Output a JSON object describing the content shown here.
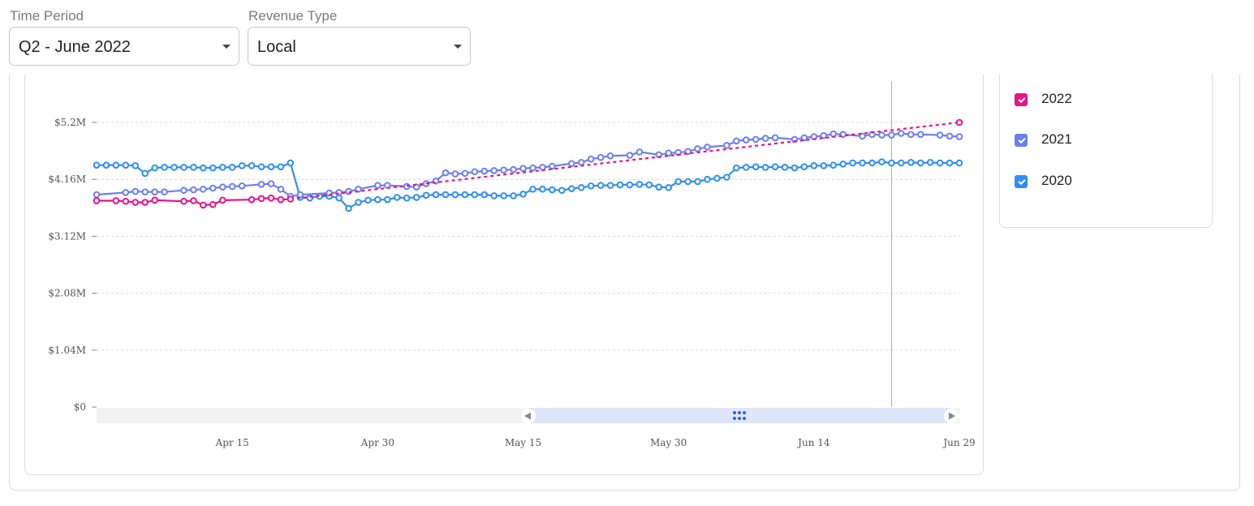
{
  "filters": {
    "time_period": {
      "label": "Time Period",
      "value": "Q2 - June 2022"
    },
    "revenue_type": {
      "label": "Revenue Type",
      "value": "Local"
    }
  },
  "legend": {
    "items": [
      {
        "label": "2022",
        "color": "#e3148c",
        "checked": true
      },
      {
        "label": "2021",
        "color": "#6b7ff0",
        "checked": true
      },
      {
        "label": "2020",
        "color": "#2f8ff0",
        "checked": true
      }
    ]
  },
  "chart_data": {
    "type": "line",
    "title": "",
    "xlabel": "",
    "ylabel": "",
    "ylim": [
      0,
      5200000
    ],
    "y_ticks": [
      0,
      1040000,
      2080000,
      3120000,
      4160000,
      5200000
    ],
    "y_tick_labels": [
      "$0",
      "$1.04M",
      "$2.08M",
      "$3.12M",
      "$4.16M",
      "$5.2M"
    ],
    "x_domain": [
      "2022-04-01",
      "2022-06-29"
    ],
    "x_ticks": [
      "2022-04-15",
      "2022-04-30",
      "2022-05-15",
      "2022-05-30",
      "2022-06-14",
      "2022-06-29"
    ],
    "x_tick_labels": [
      "Apr 15",
      "Apr 30",
      "May 15",
      "May 30",
      "Jun 14",
      "Jun 29"
    ],
    "grid": true,
    "crosshair_date": "2022-06-22",
    "series": [
      {
        "name": "2022",
        "color": "#e3148c",
        "x": [
          "2022-04-01",
          "2022-04-03",
          "2022-04-04",
          "2022-04-05",
          "2022-04-06",
          "2022-04-07",
          "2022-04-10",
          "2022-04-11",
          "2022-04-12",
          "2022-04-13",
          "2022-04-14",
          "2022-04-17",
          "2022-04-18",
          "2022-04-19",
          "2022-04-20",
          "2022-04-21"
        ],
        "values": [
          3770000,
          3770000,
          3760000,
          3740000,
          3740000,
          3780000,
          3760000,
          3770000,
          3690000,
          3700000,
          3780000,
          3790000,
          3810000,
          3820000,
          3790000,
          3800000
        ],
        "trend": {
          "x": [
            "2022-04-21",
            "2022-06-29"
          ],
          "values": [
            3800000,
            5200000
          ]
        }
      },
      {
        "name": "2021",
        "color": "#6b7ff0",
        "x": [
          "2022-04-01",
          "2022-04-04",
          "2022-04-05",
          "2022-04-06",
          "2022-04-07",
          "2022-04-08",
          "2022-04-10",
          "2022-04-11",
          "2022-04-12",
          "2022-04-13",
          "2022-04-14",
          "2022-04-15",
          "2022-04-16",
          "2022-04-18",
          "2022-04-19",
          "2022-04-20",
          "2022-04-21",
          "2022-04-22",
          "2022-04-25",
          "2022-04-26",
          "2022-04-27",
          "2022-04-28",
          "2022-04-30",
          "2022-05-01",
          "2022-05-03",
          "2022-05-04",
          "2022-05-05",
          "2022-05-06",
          "2022-05-07",
          "2022-05-08",
          "2022-05-09",
          "2022-05-10",
          "2022-05-11",
          "2022-05-12",
          "2022-05-13",
          "2022-05-14",
          "2022-05-15",
          "2022-05-16",
          "2022-05-17",
          "2022-05-18",
          "2022-05-20",
          "2022-05-21",
          "2022-05-22",
          "2022-05-23",
          "2022-05-24",
          "2022-05-26",
          "2022-05-27",
          "2022-05-29",
          "2022-05-30",
          "2022-05-31",
          "2022-06-01",
          "2022-06-02",
          "2022-06-03",
          "2022-06-05",
          "2022-06-06",
          "2022-06-07",
          "2022-06-08",
          "2022-06-09",
          "2022-06-10",
          "2022-06-12",
          "2022-06-13",
          "2022-06-14",
          "2022-06-15",
          "2022-06-16",
          "2022-06-17",
          "2022-06-19",
          "2022-06-20",
          "2022-06-21",
          "2022-06-22",
          "2022-06-23",
          "2022-06-24",
          "2022-06-25",
          "2022-06-27",
          "2022-06-28",
          "2022-06-29"
        ],
        "values": [
          3880000,
          3920000,
          3940000,
          3930000,
          3930000,
          3930000,
          3960000,
          3970000,
          3980000,
          4000000,
          4020000,
          4030000,
          4040000,
          4070000,
          4080000,
          3980000,
          3850000,
          3880000,
          3910000,
          3920000,
          3940000,
          3980000,
          4050000,
          4050000,
          4030000,
          4020000,
          4080000,
          4130000,
          4280000,
          4260000,
          4270000,
          4300000,
          4310000,
          4320000,
          4330000,
          4340000,
          4360000,
          4370000,
          4380000,
          4400000,
          4450000,
          4470000,
          4530000,
          4560000,
          4590000,
          4600000,
          4660000,
          4610000,
          4640000,
          4650000,
          4670000,
          4720000,
          4750000,
          4780000,
          4860000,
          4880000,
          4890000,
          4910000,
          4920000,
          4890000,
          4920000,
          4940000,
          4960000,
          4990000,
          4980000,
          4950000,
          4980000,
          4970000,
          4970000,
          5000000,
          4980000,
          4980000,
          4970000,
          4950000,
          4940000
        ]
      },
      {
        "name": "2020",
        "color": "#2f8ff0",
        "x": [
          "2022-04-01",
          "2022-04-02",
          "2022-04-03",
          "2022-04-04",
          "2022-04-05",
          "2022-04-06",
          "2022-04-07",
          "2022-04-08",
          "2022-04-09",
          "2022-04-10",
          "2022-04-11",
          "2022-04-12",
          "2022-04-13",
          "2022-04-14",
          "2022-04-15",
          "2022-04-16",
          "2022-04-17",
          "2022-04-18",
          "2022-04-19",
          "2022-04-20",
          "2022-04-21",
          "2022-04-22",
          "2022-04-23",
          "2022-04-24",
          "2022-04-25",
          "2022-04-26",
          "2022-04-27",
          "2022-04-28",
          "2022-04-29",
          "2022-04-30",
          "2022-05-01",
          "2022-05-02",
          "2022-05-03",
          "2022-05-04",
          "2022-05-05",
          "2022-05-06",
          "2022-05-07",
          "2022-05-08",
          "2022-05-09",
          "2022-05-10",
          "2022-05-11",
          "2022-05-12",
          "2022-05-13",
          "2022-05-14",
          "2022-05-15",
          "2022-05-16",
          "2022-05-17",
          "2022-05-18",
          "2022-05-19",
          "2022-05-20",
          "2022-05-21",
          "2022-05-22",
          "2022-05-23",
          "2022-05-24",
          "2022-05-25",
          "2022-05-26",
          "2022-05-27",
          "2022-05-28",
          "2022-05-29",
          "2022-05-30",
          "2022-05-31",
          "2022-06-01",
          "2022-06-02",
          "2022-06-03",
          "2022-06-04",
          "2022-06-05",
          "2022-06-06",
          "2022-06-07",
          "2022-06-08",
          "2022-06-09",
          "2022-06-10",
          "2022-06-11",
          "2022-06-12",
          "2022-06-13",
          "2022-06-14",
          "2022-06-15",
          "2022-06-16",
          "2022-06-17",
          "2022-06-18",
          "2022-06-19",
          "2022-06-20",
          "2022-06-21",
          "2022-06-22",
          "2022-06-23",
          "2022-06-24",
          "2022-06-25",
          "2022-06-26",
          "2022-06-27",
          "2022-06-28",
          "2022-06-29"
        ],
        "values": [
          4420000,
          4420000,
          4420000,
          4420000,
          4410000,
          4270000,
          4370000,
          4380000,
          4380000,
          4380000,
          4380000,
          4370000,
          4370000,
          4380000,
          4380000,
          4410000,
          4410000,
          4390000,
          4390000,
          4390000,
          4460000,
          3830000,
          3820000,
          3850000,
          3850000,
          3820000,
          3630000,
          3740000,
          3780000,
          3790000,
          3790000,
          3830000,
          3820000,
          3830000,
          3870000,
          3880000,
          3880000,
          3880000,
          3880000,
          3880000,
          3880000,
          3860000,
          3860000,
          3860000,
          3890000,
          3980000,
          3980000,
          3970000,
          3960000,
          3990000,
          4010000,
          4040000,
          4050000,
          4050000,
          4060000,
          4060000,
          4070000,
          4060000,
          4020000,
          4010000,
          4120000,
          4120000,
          4120000,
          4160000,
          4180000,
          4200000,
          4370000,
          4380000,
          4390000,
          4380000,
          4390000,
          4380000,
          4370000,
          4390000,
          4410000,
          4410000,
          4420000,
          4440000,
          4460000,
          4460000,
          4460000,
          4480000,
          4460000,
          4460000,
          4470000,
          4460000,
          4470000,
          4460000,
          4460000,
          4460000
        ]
      }
    ]
  }
}
